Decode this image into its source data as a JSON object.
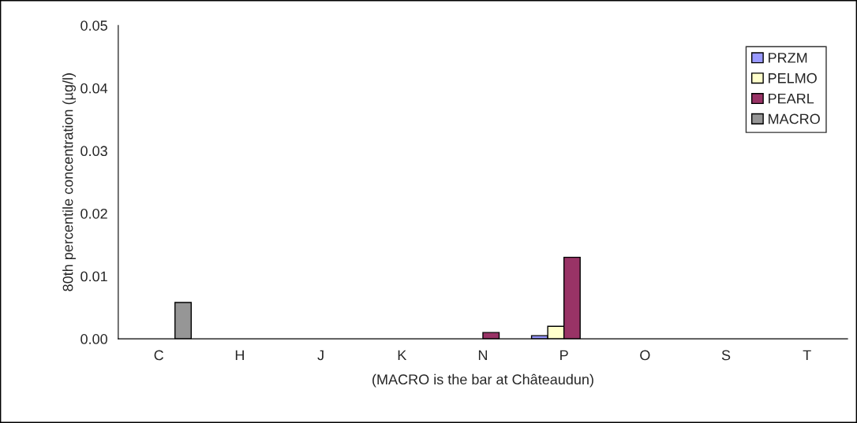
{
  "chart_data": {
    "type": "bar",
    "ylabel": "80th percentile concentration (µg/l)",
    "xlabel": "(MACRO is the bar at Châteaudun)",
    "categories": [
      "C",
      "H",
      "J",
      "K",
      "N",
      "P",
      "O",
      "S",
      "T"
    ],
    "series": [
      {
        "name": "PRZM",
        "color": "#9999ff",
        "values": [
          null,
          null,
          null,
          null,
          null,
          0.0005,
          null,
          null,
          null
        ]
      },
      {
        "name": "PELMO",
        "color": "#ffffcc",
        "values": [
          null,
          null,
          null,
          null,
          null,
          0.002,
          null,
          null,
          null
        ]
      },
      {
        "name": "PEARL",
        "color": "#993366",
        "values": [
          null,
          null,
          null,
          null,
          0.001,
          0.013,
          null,
          null,
          null
        ]
      },
      {
        "name": "MACRO",
        "color": "#969696",
        "values": [
          0.0058,
          null,
          null,
          null,
          null,
          null,
          null,
          null,
          null
        ]
      }
    ],
    "ylim": [
      0,
      0.05
    ],
    "yticks": [
      {
        "value": 0,
        "label": "0.00"
      },
      0.01,
      0.02,
      0.03,
      0.04,
      0.05
    ],
    "grid": false,
    "legend": "top right"
  }
}
